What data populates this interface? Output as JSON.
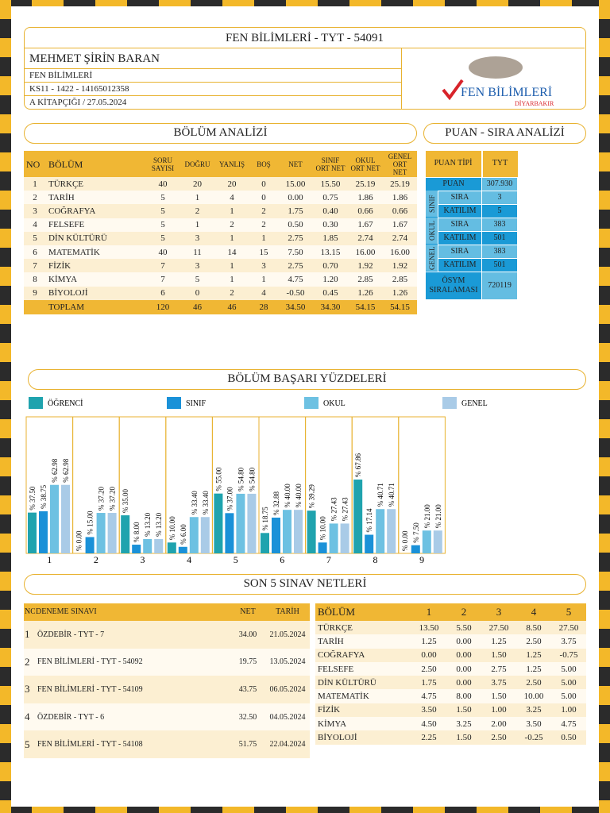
{
  "header": {
    "title": "FEN BİLİMLERİ - TYT - 54091",
    "name": "MEHMET ŞİRİN BARAN",
    "lines": [
      "FEN BİLİMLERİ",
      "KS11 - 1422 - 14165012358",
      "A KİTAPÇIĞI / 27.05.2024"
    ],
    "logo": {
      "brand": "FEN BİLİMLERİ",
      "city": "DİYARBAKIR"
    }
  },
  "bolum_analizi": {
    "title": "BÖLÜM ANALİZİ",
    "headers": [
      "NO",
      "BÖLÜM",
      "SORU SAYISI",
      "DOĞRU",
      "YANLIŞ",
      "BOŞ",
      "NET",
      "SINIF ORT NET",
      "OKUL ORT NET",
      "GENEL ORT NET"
    ],
    "rows": [
      [
        "1",
        "TÜRKÇE",
        "40",
        "20",
        "20",
        "0",
        "15.00",
        "15.50",
        "25.19",
        "25.19"
      ],
      [
        "2",
        "TARİH",
        "5",
        "1",
        "4",
        "0",
        "0.00",
        "0.75",
        "1.86",
        "1.86"
      ],
      [
        "3",
        "COĞRAFYA",
        "5",
        "2",
        "1",
        "2",
        "1.75",
        "0.40",
        "0.66",
        "0.66"
      ],
      [
        "4",
        "FELSEFE",
        "5",
        "1",
        "2",
        "2",
        "0.50",
        "0.30",
        "1.67",
        "1.67"
      ],
      [
        "5",
        "DİN KÜLTÜRÜ",
        "5",
        "3",
        "1",
        "1",
        "2.75",
        "1.85",
        "2.74",
        "2.74"
      ],
      [
        "6",
        "MATEMATİK",
        "40",
        "11",
        "14",
        "15",
        "7.50",
        "13.15",
        "16.00",
        "16.00"
      ],
      [
        "7",
        "FİZİK",
        "7",
        "3",
        "1",
        "3",
        "2.75",
        "0.70",
        "1.92",
        "1.92"
      ],
      [
        "8",
        "KİMYA",
        "7",
        "5",
        "1",
        "1",
        "4.75",
        "1.20",
        "2.85",
        "2.85"
      ],
      [
        "9",
        "BİYOLOJİ",
        "6",
        "0",
        "2",
        "4",
        "-0.50",
        "0.45",
        "1.26",
        "1.26"
      ]
    ],
    "total": {
      "label": "TOPLAM",
      "values": [
        "120",
        "46",
        "46",
        "28",
        "34.50",
        "34.30",
        "54.15",
        "54.15"
      ]
    }
  },
  "puan_sira": {
    "title": "PUAN - SIRA ANALİZİ",
    "headers": [
      "PUAN TİPİ",
      "TYT"
    ],
    "puan": {
      "label": "PUAN",
      "value": "307.930"
    },
    "groups": [
      {
        "name": "SINIF",
        "rows": [
          {
            "label": "SIRA",
            "value": "3"
          },
          {
            "label": "KATILIM",
            "value": "5"
          }
        ]
      },
      {
        "name": "OKUL",
        "rows": [
          {
            "label": "SIRA",
            "value": "383"
          },
          {
            "label": "KATILIM",
            "value": "501"
          }
        ]
      },
      {
        "name": "GENEL",
        "rows": [
          {
            "label": "SIRA",
            "value": "383"
          },
          {
            "label": "KATILIM",
            "value": "501"
          }
        ]
      }
    ],
    "osym": {
      "label": "ÖSYM SIRALAMASI",
      "value": "720119"
    }
  },
  "chart_data": {
    "type": "bar",
    "title": "BÖLÜM BAŞARI YÜZDELERİ",
    "categories": [
      "1",
      "2",
      "3",
      "4",
      "5",
      "6",
      "7",
      "8",
      "9"
    ],
    "ylim": [
      0,
      100
    ],
    "series": [
      {
        "name": "ÖĞRENCİ",
        "color": "#1fa3ae",
        "values": [
          37.5,
          0,
          35,
          10,
          55,
          18.75,
          39.29,
          67.86,
          0
        ],
        "value_labels": [
          "% 37.50",
          "% 0.00",
          "% 35.00",
          "% 10.00",
          "% 55.00",
          "% 18.75",
          "% 39.29",
          "% 67.86",
          "% 0.00"
        ]
      },
      {
        "name": "SINIF",
        "color": "#1a91d8",
        "values": [
          38.75,
          15,
          8,
          6,
          37,
          32.88,
          10,
          17.14,
          7.5
        ],
        "value_labels": [
          "% 38.75",
          "% 15.00",
          "% 8.00",
          "% 6.00",
          "% 37.00",
          "% 32.88",
          "% 10.00",
          "% 17.14",
          "% 7.50"
        ]
      },
      {
        "name": "OKUL",
        "color": "#6dc1e2",
        "values": [
          62.98,
          37.2,
          13.2,
          33.4,
          54.8,
          40,
          27.43,
          40.71,
          21
        ],
        "value_labels": [
          "% 62.98",
          "% 37.20",
          "% 13.20",
          "% 33.40",
          "% 54.80",
          "% 40.00",
          "% 27.43",
          "% 40.71",
          "% 21.00"
        ]
      },
      {
        "name": "GENEL",
        "color": "#a9cbe7",
        "values": [
          62.98,
          37.2,
          13.2,
          33.4,
          54.8,
          40,
          27.43,
          40.71,
          21
        ],
        "value_labels": [
          "% 62.98",
          "% 37.20",
          "% 13.20",
          "% 33.40",
          "% 54.80",
          "% 40.00",
          "% 27.43",
          "% 40.71",
          "% 21.00"
        ]
      }
    ]
  },
  "son_sinavlar": {
    "title": "SON 5 SINAV NETLERİ",
    "headers": [
      "NO",
      "DENEME SINAVI",
      "NET",
      "TARİH"
    ],
    "rows": [
      [
        "1",
        "ÖZDEBİR - TYT - 7",
        "34.00",
        "21.05.2024"
      ],
      [
        "2",
        "FEN BİLİMLERİ - TYT - 54092",
        "19.75",
        "13.05.2024"
      ],
      [
        "3",
        "FEN BİLİMLERİ - TYT - 54109",
        "43.75",
        "06.05.2024"
      ],
      [
        "4",
        "ÖZDEBİR - TYT - 6",
        "32.50",
        "04.05.2024"
      ],
      [
        "5",
        "FEN BİLİMLERİ - TYT - 54108",
        "51.75",
        "22.04.2024"
      ]
    ]
  },
  "netler": {
    "headers": [
      "BÖLÜM",
      "1",
      "2",
      "3",
      "4",
      "5"
    ],
    "rows": [
      [
        "TÜRKÇE",
        "13.50",
        "5.50",
        "27.50",
        "8.50",
        "27.50"
      ],
      [
        "TARİH",
        "1.25",
        "0.00",
        "1.25",
        "2.50",
        "3.75"
      ],
      [
        "COĞRAFYA",
        "0.00",
        "0.00",
        "1.50",
        "1.25",
        "-0.75"
      ],
      [
        "FELSEFE",
        "2.50",
        "0.00",
        "2.75",
        "1.25",
        "5.00"
      ],
      [
        "DİN KÜLTÜRÜ",
        "1.75",
        "0.00",
        "3.75",
        "2.50",
        "5.00"
      ],
      [
        "MATEMATİK",
        "4.75",
        "8.00",
        "1.50",
        "10.00",
        "5.00"
      ],
      [
        "FİZİK",
        "3.50",
        "1.50",
        "1.00",
        "3.25",
        "1.00"
      ],
      [
        "KİMYA",
        "4.50",
        "3.25",
        "2.00",
        "3.50",
        "4.75"
      ],
      [
        "BİYOLOJİ",
        "2.25",
        "1.50",
        "2.50",
        "-0.25",
        "0.50"
      ]
    ]
  }
}
